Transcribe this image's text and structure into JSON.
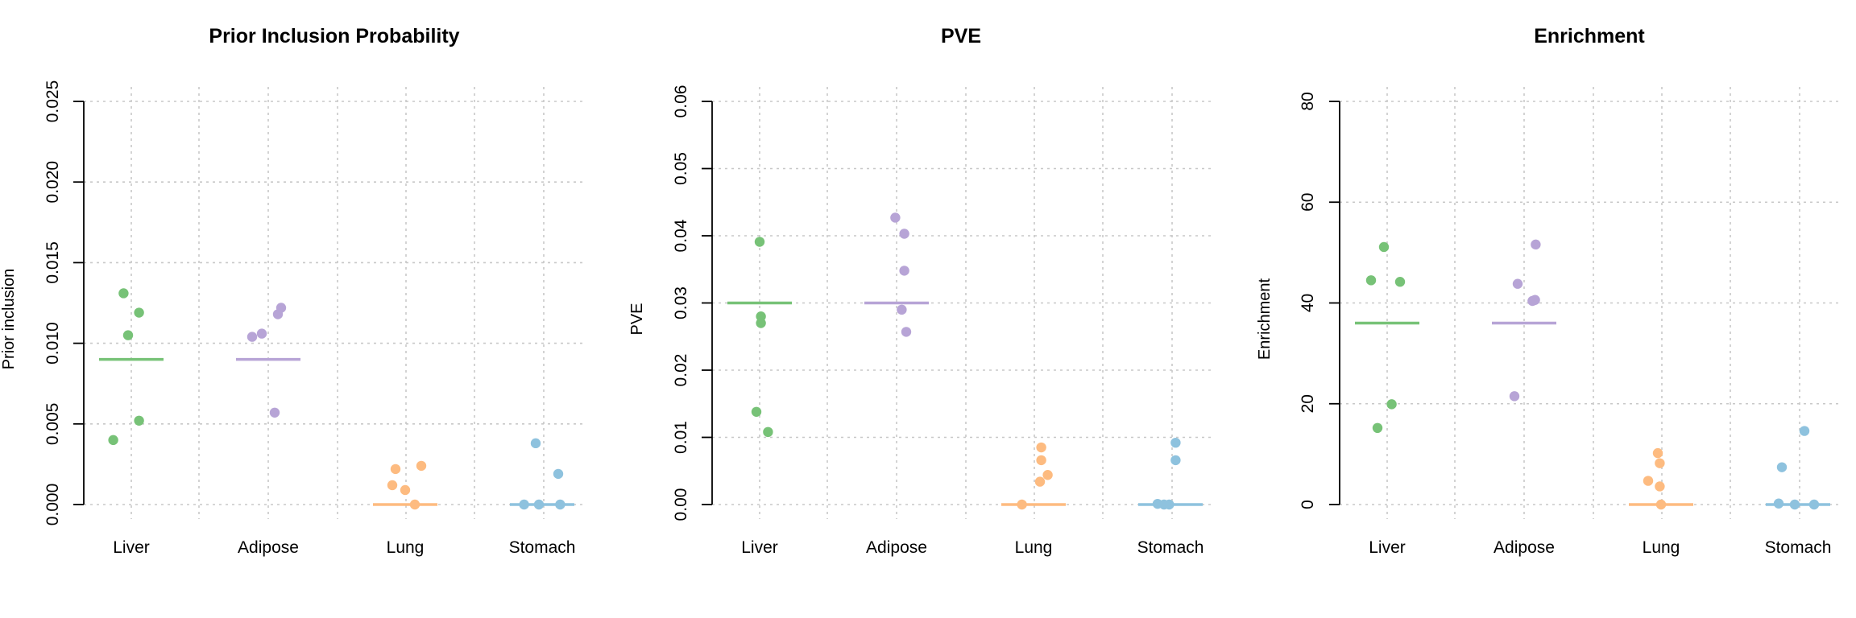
{
  "chart_data": [
    {
      "type": "scatter",
      "title": "Prior Inclusion Probability",
      "ylabel": "Prior inclusion",
      "xlabel": "",
      "ylim": [
        0,
        0.025
      ],
      "yticks": [
        "0.000",
        "0.005",
        "0.010",
        "0.015",
        "0.020",
        "0.025"
      ],
      "ytick_values": [
        0,
        0.005,
        0.01,
        0.015,
        0.02,
        0.025
      ],
      "grid": true,
      "categories": [
        "Liver",
        "Adipose",
        "Lung",
        "Stomach"
      ],
      "series": [
        {
          "category": "Liver",
          "color": "#77c277",
          "median": 0.009,
          "points": [
            {
              "jitter": -0.28,
              "y": 0.004
            },
            {
              "jitter": -0.12,
              "y": 0.0131
            },
            {
              "jitter": -0.05,
              "y": 0.0105
            },
            {
              "jitter": 0.12,
              "y": 0.0119
            },
            {
              "jitter": 0.12,
              "y": 0.0052
            }
          ]
        },
        {
          "category": "Adipose",
          "color": "#b7a4d6",
          "median": 0.009,
          "points": [
            {
              "jitter": -0.25,
              "y": 0.0104
            },
            {
              "jitter": -0.1,
              "y": 0.0106
            },
            {
              "jitter": 0.1,
              "y": 0.0057
            },
            {
              "jitter": 0.15,
              "y": 0.0118
            },
            {
              "jitter": 0.2,
              "y": 0.0122
            }
          ]
        },
        {
          "category": "Lung",
          "color": "#fdbb80",
          "median": 0.0,
          "points": [
            {
              "jitter": -0.2,
              "y": 0.0012
            },
            {
              "jitter": -0.15,
              "y": 0.0022
            },
            {
              "jitter": 0.0,
              "y": 0.0009
            },
            {
              "jitter": 0.15,
              "y": 0.0
            },
            {
              "jitter": 0.25,
              "y": 0.0024
            }
          ]
        },
        {
          "category": "Stomach",
          "color": "#8ec2de",
          "median": 0.0,
          "points": [
            {
              "jitter": -0.28,
              "y": 0.0
            },
            {
              "jitter": -0.1,
              "y": 0.0038
            },
            {
              "jitter": -0.05,
              "y": 0.0
            },
            {
              "jitter": 0.25,
              "y": 0.0019
            },
            {
              "jitter": 0.28,
              "y": 0.0
            }
          ]
        }
      ]
    },
    {
      "type": "scatter",
      "title": "PVE",
      "ylabel": "PVE",
      "xlabel": "",
      "ylim": [
        0,
        0.06
      ],
      "yticks": [
        "0.00",
        "0.01",
        "0.02",
        "0.03",
        "0.04",
        "0.05",
        "0.06"
      ],
      "ytick_values": [
        0,
        0.01,
        0.02,
        0.03,
        0.04,
        0.05,
        0.06
      ],
      "grid": true,
      "categories": [
        "Liver",
        "Adipose",
        "Lung",
        "Stomach"
      ],
      "series": [
        {
          "category": "Liver",
          "color": "#77c277",
          "median": 0.03,
          "points": [
            {
              "jitter": -0.05,
              "y": 0.0138
            },
            {
              "jitter": 0.0,
              "y": 0.0391
            },
            {
              "jitter": 0.02,
              "y": 0.028
            },
            {
              "jitter": 0.02,
              "y": 0.027
            },
            {
              "jitter": 0.13,
              "y": 0.0108
            }
          ]
        },
        {
          "category": "Adipose",
          "color": "#b7a4d6",
          "median": 0.03,
          "points": [
            {
              "jitter": -0.02,
              "y": 0.0427
            },
            {
              "jitter": 0.08,
              "y": 0.029
            },
            {
              "jitter": 0.12,
              "y": 0.0403
            },
            {
              "jitter": 0.12,
              "y": 0.0348
            },
            {
              "jitter": 0.15,
              "y": 0.0257
            }
          ]
        },
        {
          "category": "Lung",
          "color": "#fdbb80",
          "median": 0.0,
          "points": [
            {
              "jitter": -0.18,
              "y": 0.0
            },
            {
              "jitter": 0.1,
              "y": 0.0034
            },
            {
              "jitter": 0.12,
              "y": 0.0085
            },
            {
              "jitter": 0.12,
              "y": 0.0066
            },
            {
              "jitter": 0.22,
              "y": 0.0044
            }
          ]
        },
        {
          "category": "Stomach",
          "color": "#8ec2de",
          "median": 0.0,
          "points": [
            {
              "jitter": -0.2,
              "y": 0.0001
            },
            {
              "jitter": -0.1,
              "y": 0.0
            },
            {
              "jitter": -0.02,
              "y": 0.0
            },
            {
              "jitter": 0.08,
              "y": 0.0092
            },
            {
              "jitter": 0.08,
              "y": 0.0066
            }
          ]
        }
      ]
    },
    {
      "type": "scatter",
      "title": "Enrichment",
      "ylabel": "Enrichment",
      "xlabel": "",
      "ylim": [
        0,
        80
      ],
      "yticks": [
        "0",
        "20",
        "40",
        "60",
        "80"
      ],
      "ytick_values": [
        0,
        20,
        40,
        60,
        80
      ],
      "grid": true,
      "categories": [
        "Liver",
        "Adipose",
        "Lung",
        "Stomach"
      ],
      "series": [
        {
          "category": "Liver",
          "color": "#77c277",
          "median": 36.0,
          "points": [
            {
              "jitter": -0.25,
              "y": 44.5
            },
            {
              "jitter": -0.15,
              "y": 15.2
            },
            {
              "jitter": -0.05,
              "y": 51.1
            },
            {
              "jitter": 0.07,
              "y": 19.9
            },
            {
              "jitter": 0.2,
              "y": 44.2
            }
          ]
        },
        {
          "category": "Adipose",
          "color": "#b7a4d6",
          "median": 36.0,
          "points": [
            {
              "jitter": -0.15,
              "y": 21.5
            },
            {
              "jitter": -0.1,
              "y": 43.8
            },
            {
              "jitter": 0.13,
              "y": 40.4
            },
            {
              "jitter": 0.17,
              "y": 40.6
            },
            {
              "jitter": 0.18,
              "y": 51.6
            }
          ]
        },
        {
          "category": "Lung",
          "color": "#fdbb80",
          "median": 0.0,
          "points": [
            {
              "jitter": -0.2,
              "y": 4.7
            },
            {
              "jitter": -0.05,
              "y": 10.2
            },
            {
              "jitter": -0.02,
              "y": 8.2
            },
            {
              "jitter": -0.02,
              "y": 3.6
            },
            {
              "jitter": 0.0,
              "y": 0.0
            }
          ]
        },
        {
          "category": "Stomach",
          "color": "#8ec2de",
          "median": 0.0,
          "points": [
            {
              "jitter": -0.3,
              "y": 0.2
            },
            {
              "jitter": -0.25,
              "y": 7.4
            },
            {
              "jitter": -0.05,
              "y": 0.0
            },
            {
              "jitter": 0.1,
              "y": 14.6
            },
            {
              "jitter": 0.25,
              "y": 0.0
            }
          ]
        }
      ]
    }
  ]
}
